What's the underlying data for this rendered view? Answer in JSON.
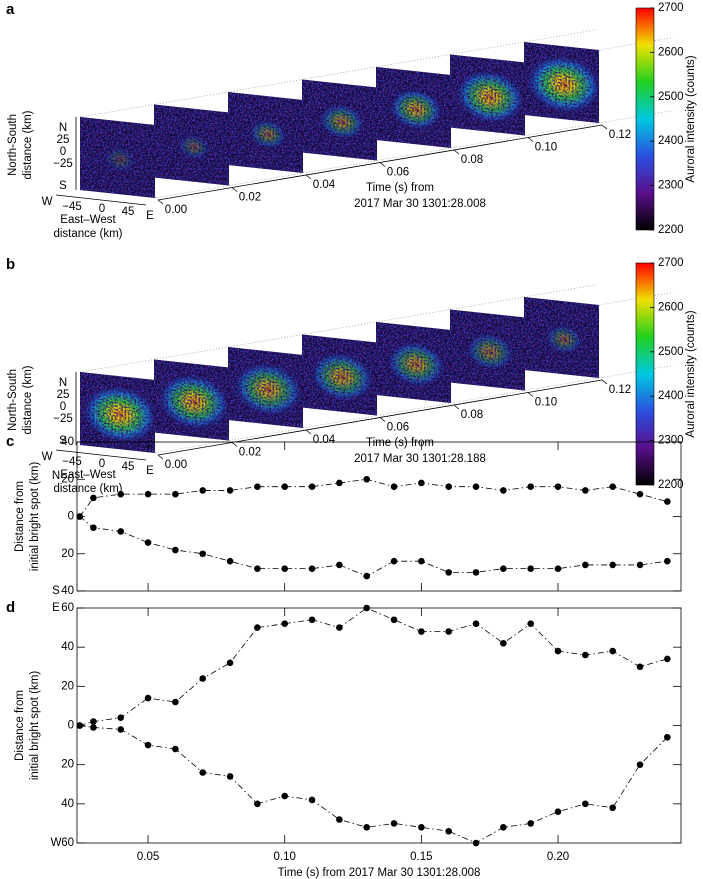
{
  "chart_data": [
    {
      "type": "heatmap",
      "panel": "a",
      "ns_labels": [
        "N",
        "25",
        "0",
        "−25",
        "S"
      ],
      "ns_title": [
        "North-South",
        "distance (km)"
      ],
      "ew_labels": [
        "W",
        "−45",
        "0",
        "45",
        "E"
      ],
      "ew_title": [
        "East–West",
        "distance (km)"
      ],
      "time_title": [
        "Time (s) from",
        "2017 Mar 30 1301:28.008"
      ],
      "time_lim": [
        0,
        0.12
      ],
      "time_ticks": [
        {
          "value": 0,
          "label": "0.00"
        },
        0.02,
        0.04,
        0.06,
        0.08,
        {
          "value": 0.1,
          "label": "0.10"
        },
        0.12
      ],
      "colorbar": {
        "lim": [
          2200,
          2700
        ],
        "ticks": [
          2200,
          2300,
          2400,
          2500,
          2600,
          2700
        ],
        "label": "Auroral intensity (counts)",
        "colors": [
          "#000000",
          "#5a0f8c",
          "#2a50e0",
          "#00c8e0",
          "#20d020",
          "#f0e000",
          "#ff0000"
        ]
      }
    },
    {
      "type": "heatmap",
      "panel": "b",
      "ns_labels": [
        "N",
        "25",
        "0",
        "−25",
        "S"
      ],
      "ns_title": [
        "North-South",
        "distance (km)"
      ],
      "ew_labels": [
        "W",
        "−45",
        "0",
        "45",
        "E"
      ],
      "ew_title": [
        "East–West",
        "distance (km)"
      ],
      "time_title": [
        "Time (s) from",
        "2017 Mar 30 1301:28.188"
      ],
      "time_lim": [
        0,
        0.12
      ],
      "time_ticks": [
        {
          "value": 0,
          "label": "0.00"
        },
        0.02,
        0.04,
        0.06,
        0.08,
        {
          "value": 0.1,
          "label": "0.10"
        },
        0.12
      ],
      "colorbar": {
        "lim": [
          2200,
          2700
        ],
        "ticks": [
          2200,
          2300,
          2400,
          2500,
          2600,
          2700
        ],
        "label": "Auroral intensity (counts)",
        "colors": [
          "#000000",
          "#5a0f8c",
          "#2a50e0",
          "#00c8e0",
          "#20d020",
          "#f0e000",
          "#ff0000"
        ]
      }
    },
    {
      "type": "line",
      "panel": "c",
      "x": [
        0.025,
        0.03,
        0.04,
        0.05,
        0.06,
        0.07,
        0.08,
        0.09,
        0.1,
        0.11,
        0.12,
        0.13,
        0.14,
        0.15,
        0.16,
        0.17,
        0.18,
        0.19,
        0.2,
        0.21,
        0.22,
        0.23,
        0.24
      ],
      "xlim": [
        0.024,
        0.245
      ],
      "xticks": [
        0.05,
        0.1,
        0.15,
        0.2
      ],
      "ylim": [
        -40,
        40
      ],
      "yticks": [
        40,
        20,
        0,
        {
          "value": -20,
          "label": "20"
        },
        {
          "value": -40,
          "label": "40"
        }
      ],
      "y_label": [
        "Distance from",
        "initial bright spot (km)"
      ],
      "directions": [
        "N",
        "S"
      ],
      "series": [
        {
          "color": "#000000",
          "values": [
            0,
            10,
            12,
            12,
            12,
            14,
            14,
            16,
            16,
            16,
            18,
            20,
            16,
            18,
            16,
            16,
            14,
            16,
            16,
            14,
            16,
            12,
            8
          ]
        },
        {
          "color": "#000000",
          "values": [
            0,
            -6,
            -8,
            -14,
            -18,
            -20,
            -24,
            -28,
            -28,
            -28,
            -26,
            -32,
            -24,
            -24,
            -30,
            -30,
            -28,
            -28,
            -28,
            -26,
            -26,
            -26,
            -24
          ]
        }
      ]
    },
    {
      "type": "line",
      "panel": "d",
      "x": [
        0.025,
        0.03,
        0.04,
        0.05,
        0.06,
        0.07,
        0.08,
        0.09,
        0.1,
        0.11,
        0.12,
        0.13,
        0.14,
        0.15,
        0.16,
        0.17,
        0.18,
        0.19,
        0.2,
        0.21,
        0.22,
        0.23,
        0.24
      ],
      "xlim": [
        0.024,
        0.245
      ],
      "xticks": [
        0.05,
        {
          "value": 0.1,
          "label": "0.10"
        },
        0.15,
        {
          "value": 0.2,
          "label": "0.20"
        }
      ],
      "x_label": "Time (s) from 2017 Mar 30  1301:28.008",
      "ylim": [
        -60,
        60
      ],
      "yticks": [
        60,
        40,
        20,
        0,
        {
          "value": -20,
          "label": "20"
        },
        {
          "value": -40,
          "label": "40"
        },
        {
          "value": -60,
          "label": "60"
        }
      ],
      "y_label": [
        "Distance from",
        "initial bright spot (km)"
      ],
      "directions": [
        "E",
        "W"
      ],
      "series": [
        {
          "color": "#000000",
          "values": [
            0,
            2,
            4,
            14,
            12,
            24,
            32,
            50,
            52,
            54,
            50,
            60,
            54,
            48,
            48,
            52,
            42,
            52,
            38,
            36,
            38,
            30,
            34
          ]
        },
        {
          "color": "#000000",
          "values": [
            0,
            -1,
            -2,
            -10,
            -12,
            -24,
            -26,
            -40,
            -36,
            -38,
            -48,
            -52,
            -50,
            -52,
            -54,
            -60,
            -52,
            -50,
            -44,
            -40,
            -42,
            -20,
            -6
          ]
        }
      ]
    }
  ]
}
